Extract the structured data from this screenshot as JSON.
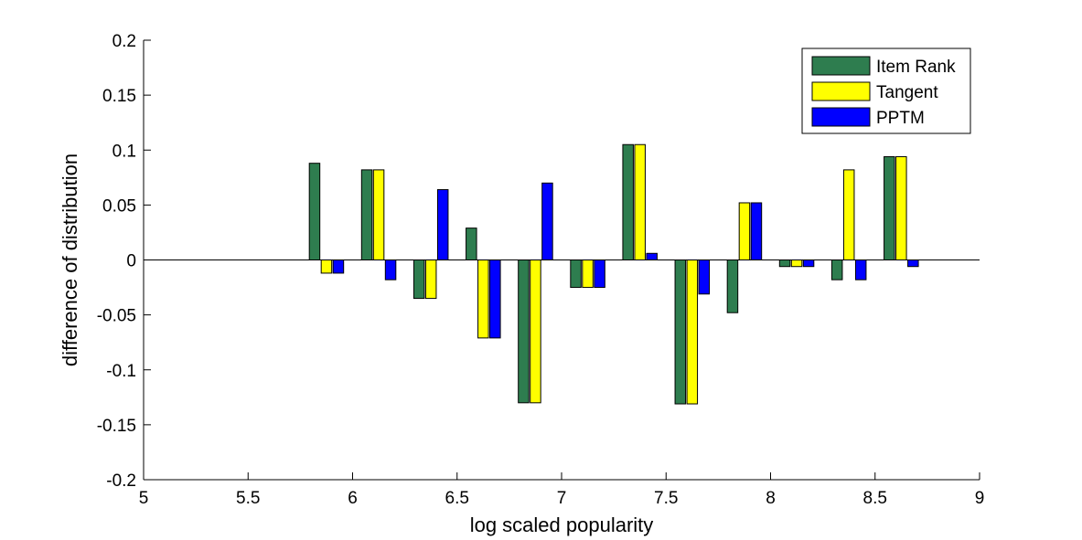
{
  "chart_data": {
    "type": "bar",
    "title": "",
    "xlabel": "log scaled popularity",
    "ylabel": "difference of distribution",
    "xlim": [
      5,
      9
    ],
    "ylim": [
      -0.2,
      0.2
    ],
    "xticks": [
      5,
      5.5,
      6,
      6.5,
      7,
      7.5,
      8,
      8.5,
      9
    ],
    "xtick_labels": [
      "5",
      "5.5",
      "6",
      "6.5",
      "7",
      "7.5",
      "8",
      "8.5",
      "9"
    ],
    "yticks": [
      -0.2,
      -0.15,
      -0.1,
      -0.05,
      0,
      0.05,
      0.1,
      0.15,
      0.2
    ],
    "ytick_labels": [
      "-0.2",
      "-0.15",
      "-0.1",
      "-0.05",
      "0",
      "0.05",
      "0.1",
      "0.15",
      "0.2"
    ],
    "grid": false,
    "legend_position": "top-right",
    "x": [
      5.875,
      6.125,
      6.375,
      6.625,
      6.875,
      7.125,
      7.375,
      7.625,
      7.875,
      8.125,
      8.375,
      8.625
    ],
    "series": [
      {
        "name": "Item Rank",
        "color": "#2e7d4f",
        "values": [
          0.088,
          0.082,
          -0.035,
          0.029,
          -0.13,
          -0.025,
          0.105,
          -0.131,
          -0.048,
          -0.006,
          -0.018,
          0.094
        ]
      },
      {
        "name": "Tangent",
        "color": "#ffff00",
        "values": [
          -0.012,
          0.082,
          -0.035,
          -0.071,
          -0.13,
          -0.025,
          0.105,
          -0.131,
          0.052,
          -0.006,
          0.082,
          0.094
        ]
      },
      {
        "name": "PPTM",
        "color": "#0000ff",
        "values": [
          -0.012,
          -0.018,
          0.064,
          -0.071,
          0.07,
          -0.025,
          0.006,
          -0.031,
          0.052,
          -0.006,
          -0.018,
          -0.006
        ]
      }
    ]
  }
}
